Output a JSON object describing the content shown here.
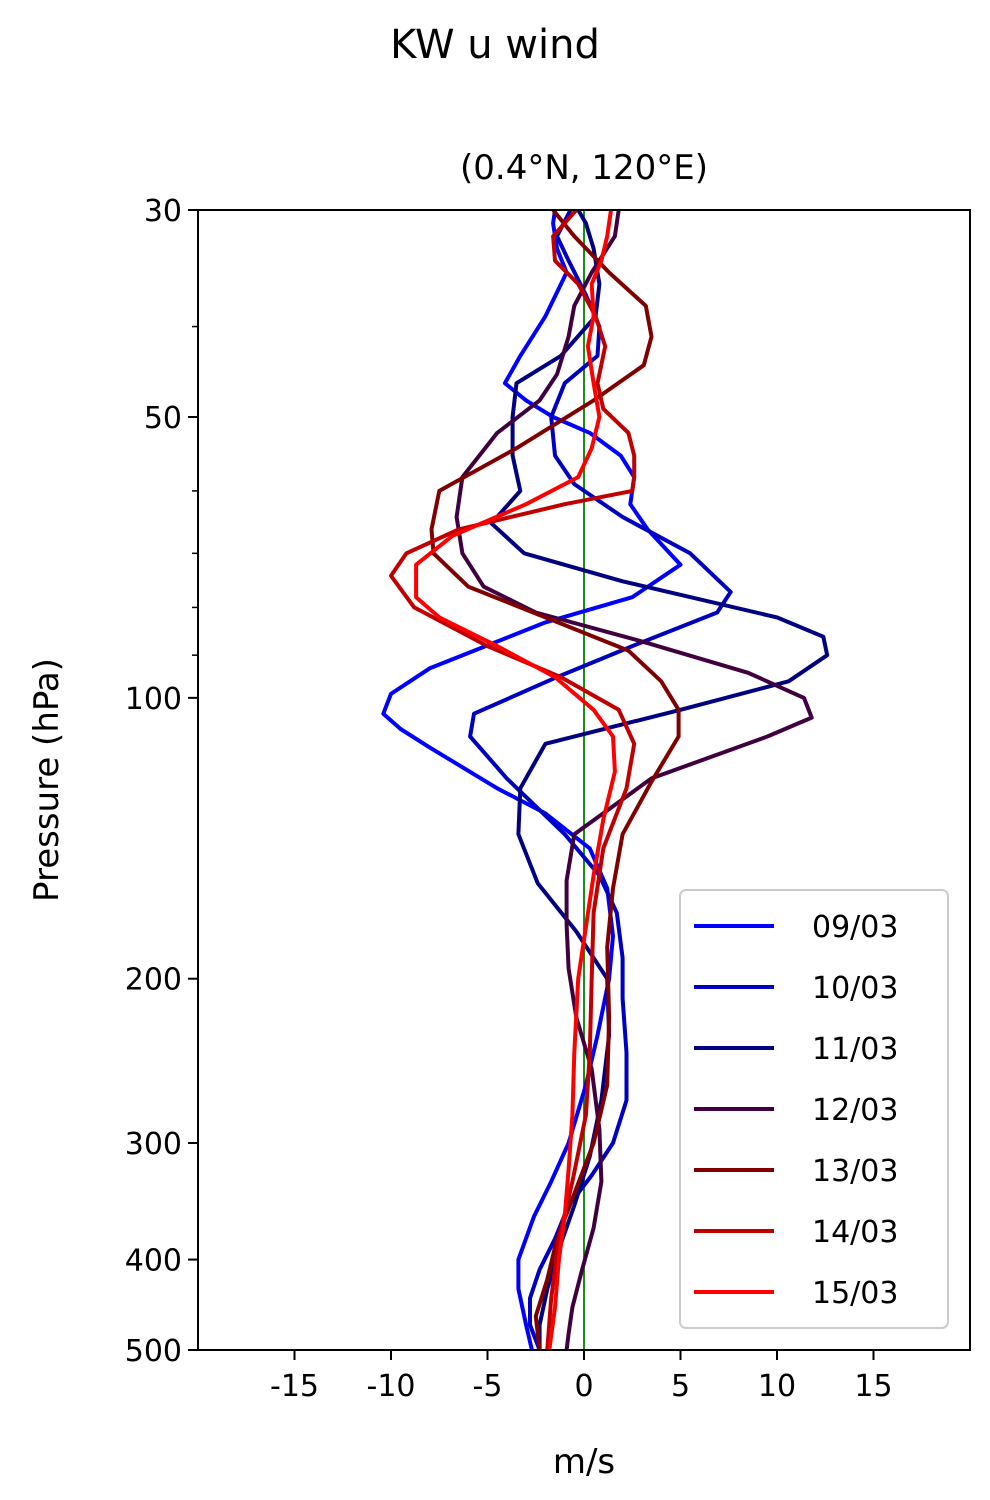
{
  "chart_data": {
    "type": "line",
    "title": "KW u wind",
    "subtitle": "(0.4°N, 120°E)",
    "xlabel": "m/s",
    "ylabel": "Pressure (hPa)",
    "xlim": [
      -20,
      20
    ],
    "ylim": [
      500,
      30
    ],
    "y_scale": "log",
    "x_ticks": [
      -15,
      -10,
      -5,
      0,
      5,
      10,
      15
    ],
    "y_ticks": [
      30,
      50,
      100,
      200,
      300,
      400,
      500
    ],
    "grid": false,
    "legend_position": "lower right",
    "zero_line_color": "#008000",
    "series": [
      {
        "name": "09/03",
        "color": "#0000ff",
        "x": [
          -1.5,
          -1.6,
          -1.4,
          -0.9,
          -2.0,
          -3.3,
          -4.1,
          -3.0,
          -1.6,
          0.3,
          1.9,
          2.6,
          2.4,
          3.3,
          5.0,
          2.5,
          -2.0,
          -8.0,
          -10.0,
          -10.4,
          -9.5,
          -8.0,
          -4.5,
          -2.0,
          0.3,
          1.2,
          1.5,
          1.3,
          0.7,
          0.1,
          -0.8,
          -1.7,
          -2.6,
          -3.4,
          -3.4,
          -3.0,
          -2.7
        ],
        "y": [
          30,
          31,
          33,
          35,
          39,
          43,
          46,
          48,
          50,
          52,
          55,
          58,
          62,
          66,
          72,
          78,
          83,
          93,
          99,
          104,
          108,
          113,
          125,
          133,
          145,
          160,
          180,
          200,
          230,
          260,
          300,
          330,
          360,
          400,
          430,
          470,
          500
        ]
      },
      {
        "name": "10/03",
        "color": "#0000c0",
        "x": [
          -0.7,
          -1.4,
          -0.8,
          0.1,
          0.8,
          0.7,
          -1.0,
          -1.7,
          -1.5,
          -0.5,
          2.0,
          5.5,
          7.6,
          6.9,
          2.5,
          -1.4,
          -5.7,
          -5.9,
          -4.0,
          -1.0,
          0.8,
          1.7,
          2.0,
          2.0,
          2.2,
          2.2,
          1.5,
          0.4,
          -0.8,
          -1.5,
          -2.3,
          -2.8,
          -2.8,
          -2.3
        ],
        "y": [
          30,
          32,
          34,
          37,
          40,
          43,
          46,
          50,
          55,
          59,
          64,
          70,
          77,
          81,
          88,
          95,
          104,
          110,
          122,
          140,
          155,
          170,
          190,
          210,
          240,
          270,
          300,
          325,
          350,
          380,
          410,
          440,
          470,
          500
        ]
      },
      {
        "name": "11/03",
        "color": "#000080",
        "x": [
          -0.3,
          0.1,
          0.5,
          0.8,
          0.6,
          -1.2,
          -3.5,
          -3.7,
          -3.7,
          -3.3,
          -4.8,
          -3.1,
          2.0,
          10.0,
          12.4,
          12.6,
          10.6,
          5.0,
          -2.0,
          -3.3,
          -3.4,
          -2.4,
          -0.4,
          1.2,
          1.3,
          0.9,
          0.3,
          -0.5,
          -1.3,
          -1.9,
          -2.3,
          -2.3
        ],
        "y": [
          30,
          31,
          33,
          36,
          39,
          43,
          46,
          50,
          55,
          60,
          65,
          70,
          75,
          82,
          86,
          90,
          96,
          103,
          112,
          125,
          140,
          158,
          178,
          200,
          230,
          270,
          310,
          350,
          390,
          430,
          470,
          500
        ]
      },
      {
        "name": "12/03",
        "color": "#400040",
        "x": [
          1.8,
          1.6,
          0.4,
          -0.5,
          -0.8,
          -1.4,
          -2.3,
          -4.5,
          -6.3,
          -6.6,
          -6.3,
          -5.2,
          -2.5,
          3.0,
          8.5,
          11.4,
          11.8,
          9.5,
          3.5,
          -0.5,
          -0.9,
          -0.9,
          -0.8,
          -0.4,
          0.4,
          0.8,
          0.9,
          0.5,
          -0.1,
          -0.6,
          -0.8,
          -0.9
        ],
        "y": [
          30,
          32,
          35,
          38,
          41,
          45,
          48,
          52,
          58,
          64,
          70,
          76,
          81,
          87,
          94,
          100,
          105,
          110,
          122,
          140,
          157,
          175,
          195,
          220,
          250,
          290,
          330,
          370,
          410,
          450,
          480,
          500
        ]
      },
      {
        "name": "13/03",
        "color": "#800000",
        "x": [
          -1.6,
          -0.5,
          1.3,
          3.2,
          3.5,
          3.1,
          0.5,
          -3.5,
          -7.5,
          -7.9,
          -7.8,
          -6.0,
          -2.0,
          2.3,
          4.0,
          4.9,
          4.9,
          3.5,
          2.0,
          1.5,
          1.2,
          1.3,
          1.2,
          0.5,
          -0.5,
          -1.4,
          -1.9,
          -2.5,
          -2.3
        ],
        "y": [
          30,
          32,
          35,
          38,
          41,
          44,
          48,
          54,
          60,
          66,
          70,
          76,
          82,
          89,
          96,
          103,
          110,
          123,
          140,
          160,
          185,
          220,
          260,
          300,
          340,
          380,
          420,
          460,
          500
        ]
      },
      {
        "name": "14/03",
        "color": "#c00000",
        "x": [
          -0.4,
          -1.6,
          -1.5,
          -0.3,
          0.6,
          1.1,
          0.7,
          1.0,
          2.3,
          2.6,
          2.6,
          2.5,
          -1.0,
          -6.5,
          -9.2,
          -10.0,
          -8.8,
          -5.0,
          -1.2,
          1.8,
          2.6,
          2.2,
          1.0,
          0.5,
          0.4,
          0.3,
          0.1,
          -0.6,
          -1.3,
          -1.7,
          -1.9
        ],
        "y": [
          30,
          32,
          34,
          36,
          39,
          42,
          46,
          49,
          52,
          55,
          58,
          60,
          62,
          66,
          70,
          74,
          80,
          88,
          95,
          103,
          112,
          125,
          145,
          170,
          200,
          240,
          280,
          330,
          380,
          440,
          500
        ]
      },
      {
        "name": "15/03",
        "color": "#ff0000",
        "x": [
          1.4,
          1.2,
          0.9,
          0.4,
          0.5,
          0.2,
          0.5,
          0.8,
          0.4,
          -0.3,
          -3.0,
          -6.8,
          -8.7,
          -8.7,
          -7.5,
          -4.5,
          -1.5,
          0.5,
          1.5,
          1.6,
          1.0,
          0.5,
          -0.3,
          -0.5,
          -0.6,
          -0.8,
          -1.0,
          -1.3,
          -1.5,
          -1.8
        ],
        "y": [
          30,
          32,
          34,
          36,
          39,
          42,
          46,
          50,
          54,
          58,
          62,
          67,
          72,
          78,
          82,
          88,
          95,
          103,
          110,
          120,
          135,
          155,
          200,
          240,
          280,
          320,
          360,
          400,
          450,
          500
        ]
      }
    ]
  }
}
